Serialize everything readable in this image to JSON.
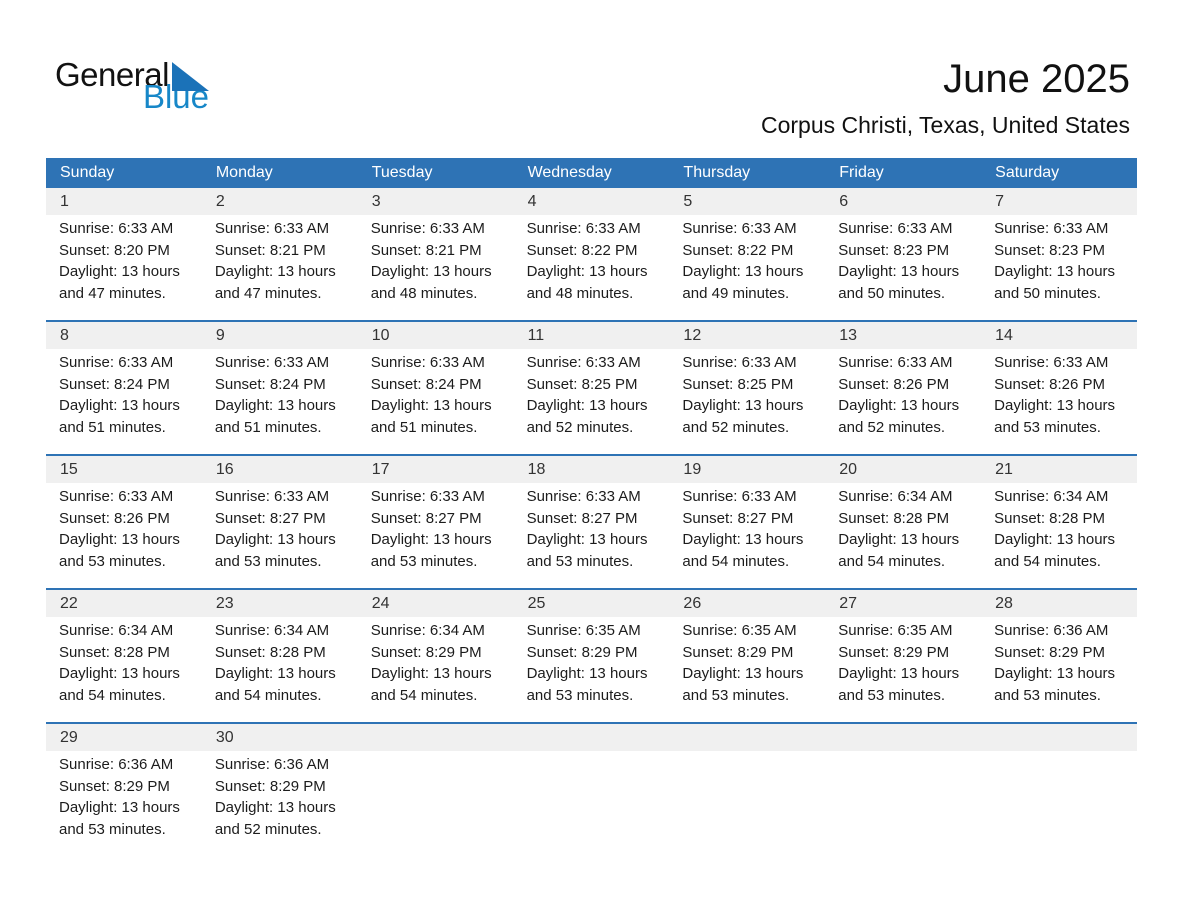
{
  "logo": {
    "general": "General",
    "blue": "Blue"
  },
  "header": {
    "title": "June 2025",
    "location": "Corpus Christi, Texas, United States"
  },
  "colors": {
    "header_blue": "#2E73B5",
    "row_border_blue": "#2E73B5",
    "stripe_gray": "#F0F0F0",
    "logo_text_blue": "#1787C8",
    "logo_triangle_blue": "#1B72B8"
  },
  "calendar": {
    "weekdays": [
      "Sunday",
      "Monday",
      "Tuesday",
      "Wednesday",
      "Thursday",
      "Friday",
      "Saturday"
    ],
    "weeks": [
      [
        {
          "day": "1",
          "sunrise": "Sunrise: 6:33 AM",
          "sunset": "Sunset: 8:20 PM",
          "daylight1": "Daylight: 13 hours",
          "daylight2": "and 47 minutes."
        },
        {
          "day": "2",
          "sunrise": "Sunrise: 6:33 AM",
          "sunset": "Sunset: 8:21 PM",
          "daylight1": "Daylight: 13 hours",
          "daylight2": "and 47 minutes."
        },
        {
          "day": "3",
          "sunrise": "Sunrise: 6:33 AM",
          "sunset": "Sunset: 8:21 PM",
          "daylight1": "Daylight: 13 hours",
          "daylight2": "and 48 minutes."
        },
        {
          "day": "4",
          "sunrise": "Sunrise: 6:33 AM",
          "sunset": "Sunset: 8:22 PM",
          "daylight1": "Daylight: 13 hours",
          "daylight2": "and 48 minutes."
        },
        {
          "day": "5",
          "sunrise": "Sunrise: 6:33 AM",
          "sunset": "Sunset: 8:22 PM",
          "daylight1": "Daylight: 13 hours",
          "daylight2": "and 49 minutes."
        },
        {
          "day": "6",
          "sunrise": "Sunrise: 6:33 AM",
          "sunset": "Sunset: 8:23 PM",
          "daylight1": "Daylight: 13 hours",
          "daylight2": "and 50 minutes."
        },
        {
          "day": "7",
          "sunrise": "Sunrise: 6:33 AM",
          "sunset": "Sunset: 8:23 PM",
          "daylight1": "Daylight: 13 hours",
          "daylight2": "and 50 minutes."
        }
      ],
      [
        {
          "day": "8",
          "sunrise": "Sunrise: 6:33 AM",
          "sunset": "Sunset: 8:24 PM",
          "daylight1": "Daylight: 13 hours",
          "daylight2": "and 51 minutes."
        },
        {
          "day": "9",
          "sunrise": "Sunrise: 6:33 AM",
          "sunset": "Sunset: 8:24 PM",
          "daylight1": "Daylight: 13 hours",
          "daylight2": "and 51 minutes."
        },
        {
          "day": "10",
          "sunrise": "Sunrise: 6:33 AM",
          "sunset": "Sunset: 8:24 PM",
          "daylight1": "Daylight: 13 hours",
          "daylight2": "and 51 minutes."
        },
        {
          "day": "11",
          "sunrise": "Sunrise: 6:33 AM",
          "sunset": "Sunset: 8:25 PM",
          "daylight1": "Daylight: 13 hours",
          "daylight2": "and 52 minutes."
        },
        {
          "day": "12",
          "sunrise": "Sunrise: 6:33 AM",
          "sunset": "Sunset: 8:25 PM",
          "daylight1": "Daylight: 13 hours",
          "daylight2": "and 52 minutes."
        },
        {
          "day": "13",
          "sunrise": "Sunrise: 6:33 AM",
          "sunset": "Sunset: 8:26 PM",
          "daylight1": "Daylight: 13 hours",
          "daylight2": "and 52 minutes."
        },
        {
          "day": "14",
          "sunrise": "Sunrise: 6:33 AM",
          "sunset": "Sunset: 8:26 PM",
          "daylight1": "Daylight: 13 hours",
          "daylight2": "and 53 minutes."
        }
      ],
      [
        {
          "day": "15",
          "sunrise": "Sunrise: 6:33 AM",
          "sunset": "Sunset: 8:26 PM",
          "daylight1": "Daylight: 13 hours",
          "daylight2": "and 53 minutes."
        },
        {
          "day": "16",
          "sunrise": "Sunrise: 6:33 AM",
          "sunset": "Sunset: 8:27 PM",
          "daylight1": "Daylight: 13 hours",
          "daylight2": "and 53 minutes."
        },
        {
          "day": "17",
          "sunrise": "Sunrise: 6:33 AM",
          "sunset": "Sunset: 8:27 PM",
          "daylight1": "Daylight: 13 hours",
          "daylight2": "and 53 minutes."
        },
        {
          "day": "18",
          "sunrise": "Sunrise: 6:33 AM",
          "sunset": "Sunset: 8:27 PM",
          "daylight1": "Daylight: 13 hours",
          "daylight2": "and 53 minutes."
        },
        {
          "day": "19",
          "sunrise": "Sunrise: 6:33 AM",
          "sunset": "Sunset: 8:27 PM",
          "daylight1": "Daylight: 13 hours",
          "daylight2": "and 54 minutes."
        },
        {
          "day": "20",
          "sunrise": "Sunrise: 6:34 AM",
          "sunset": "Sunset: 8:28 PM",
          "daylight1": "Daylight: 13 hours",
          "daylight2": "and 54 minutes."
        },
        {
          "day": "21",
          "sunrise": "Sunrise: 6:34 AM",
          "sunset": "Sunset: 8:28 PM",
          "daylight1": "Daylight: 13 hours",
          "daylight2": "and 54 minutes."
        }
      ],
      [
        {
          "day": "22",
          "sunrise": "Sunrise: 6:34 AM",
          "sunset": "Sunset: 8:28 PM",
          "daylight1": "Daylight: 13 hours",
          "daylight2": "and 54 minutes."
        },
        {
          "day": "23",
          "sunrise": "Sunrise: 6:34 AM",
          "sunset": "Sunset: 8:28 PM",
          "daylight1": "Daylight: 13 hours",
          "daylight2": "and 54 minutes."
        },
        {
          "day": "24",
          "sunrise": "Sunrise: 6:34 AM",
          "sunset": "Sunset: 8:29 PM",
          "daylight1": "Daylight: 13 hours",
          "daylight2": "and 54 minutes."
        },
        {
          "day": "25",
          "sunrise": "Sunrise: 6:35 AM",
          "sunset": "Sunset: 8:29 PM",
          "daylight1": "Daylight: 13 hours",
          "daylight2": "and 53 minutes."
        },
        {
          "day": "26",
          "sunrise": "Sunrise: 6:35 AM",
          "sunset": "Sunset: 8:29 PM",
          "daylight1": "Daylight: 13 hours",
          "daylight2": "and 53 minutes."
        },
        {
          "day": "27",
          "sunrise": "Sunrise: 6:35 AM",
          "sunset": "Sunset: 8:29 PM",
          "daylight1": "Daylight: 13 hours",
          "daylight2": "and 53 minutes."
        },
        {
          "day": "28",
          "sunrise": "Sunrise: 6:36 AM",
          "sunset": "Sunset: 8:29 PM",
          "daylight1": "Daylight: 13 hours",
          "daylight2": "and 53 minutes."
        }
      ],
      [
        {
          "day": "29",
          "sunrise": "Sunrise: 6:36 AM",
          "sunset": "Sunset: 8:29 PM",
          "daylight1": "Daylight: 13 hours",
          "daylight2": "and 53 minutes."
        },
        {
          "day": "30",
          "sunrise": "Sunrise: 6:36 AM",
          "sunset": "Sunset: 8:29 PM",
          "daylight1": "Daylight: 13 hours",
          "daylight2": "and 52 minutes."
        },
        null,
        null,
        null,
        null,
        null
      ]
    ]
  }
}
